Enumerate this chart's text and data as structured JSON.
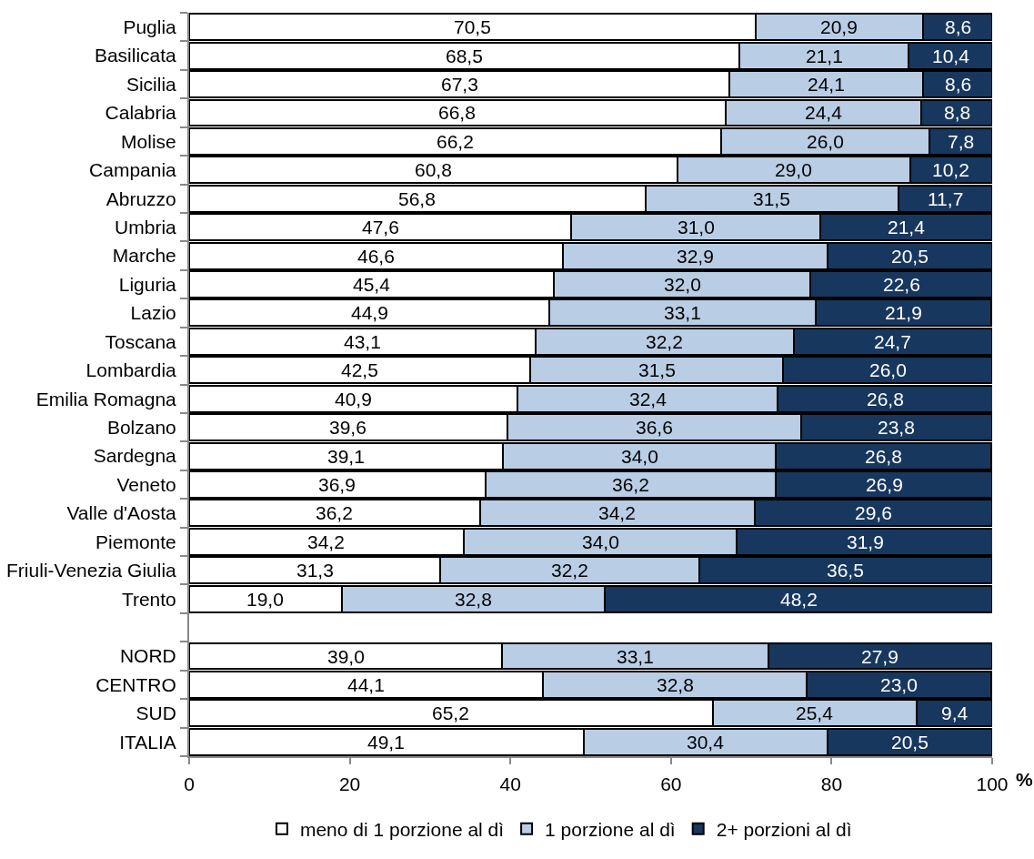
{
  "chart_data": {
    "type": "bar",
    "orientation": "horizontal",
    "stacked": true,
    "categories": [
      "Puglia",
      "Basilicata",
      "Sicilia",
      "Calabria",
      "Molise",
      "Campania",
      "Abruzzo",
      "Umbria",
      "Marche",
      "Liguria",
      "Lazio",
      "Toscana",
      "Lombardia",
      "Emilia Romagna",
      "Bolzano",
      "Sardegna",
      "Veneto",
      "Valle d'Aosta",
      "Piemonte",
      "Friuli-Venezia Giulia",
      "Trento",
      null,
      "NORD",
      "CENTRO",
      "SUD",
      "ITALIA"
    ],
    "series": [
      {
        "name": "meno di 1 porzione al dì",
        "color": "#ffffff",
        "values": [
          70.5,
          68.5,
          67.3,
          66.8,
          66.2,
          60.8,
          56.8,
          47.6,
          46.6,
          45.4,
          44.9,
          43.1,
          42.5,
          40.9,
          39.6,
          39.1,
          36.9,
          36.2,
          34.2,
          31.3,
          19.0,
          null,
          39.0,
          44.1,
          65.2,
          49.1
        ],
        "value_labels": [
          "70,5",
          "68,5",
          "67,3",
          "66,8",
          "66,2",
          "60,8",
          "56,8",
          "47,6",
          "46,6",
          "45,4",
          "44,9",
          "43,1",
          "42,5",
          "40,9",
          "39,6",
          "39,1",
          "36,9",
          "36,2",
          "34,2",
          "31,3",
          "19,0",
          null,
          "39,0",
          "44,1",
          "65,2",
          "49,1"
        ]
      },
      {
        "name": "1 porzione al dì",
        "color": "#b9cde5",
        "values": [
          20.9,
          21.1,
          24.1,
          24.4,
          26.0,
          29.0,
          31.5,
          31.0,
          32.9,
          32.0,
          33.1,
          32.2,
          31.5,
          32.4,
          36.6,
          34.0,
          36.2,
          34.2,
          34.0,
          32.2,
          32.8,
          null,
          33.1,
          32.8,
          25.4,
          30.4
        ],
        "value_labels": [
          "20,9",
          "21,1",
          "24,1",
          "24,4",
          "26,0",
          "29,0",
          "31,5",
          "31,0",
          "32,9",
          "32,0",
          "33,1",
          "32,2",
          "31,5",
          "32,4",
          "36,6",
          "34,0",
          "36,2",
          "34,2",
          "34,0",
          "32,2",
          "32,8",
          null,
          "33,1",
          "32,8",
          "25,4",
          "30,4"
        ]
      },
      {
        "name": "2+ porzioni al dì",
        "color": "#17375e",
        "values": [
          8.6,
          10.4,
          8.6,
          8.8,
          7.8,
          10.2,
          11.7,
          21.4,
          20.5,
          22.6,
          21.9,
          24.7,
          26.0,
          26.8,
          23.8,
          26.8,
          26.9,
          29.6,
          31.9,
          36.5,
          48.2,
          null,
          27.9,
          23.0,
          9.4,
          20.5
        ],
        "value_labels": [
          "8,6",
          "10,4",
          "8,6",
          "8,8",
          "7,8",
          "10,2",
          "11,7",
          "21,4",
          "20,5",
          "22,6",
          "21,9",
          "24,7",
          "26,0",
          "26,8",
          "23,8",
          "26,8",
          "26,9",
          "29,6",
          "31,9",
          "36,5",
          "48,2",
          null,
          "27,9",
          "23,0",
          "9,4",
          "20,5"
        ]
      }
    ],
    "xlim": [
      0,
      100
    ],
    "xticks": [
      0,
      20,
      40,
      60,
      80,
      100
    ],
    "xlabel": "%",
    "grid": false,
    "legend": "bottom"
  }
}
